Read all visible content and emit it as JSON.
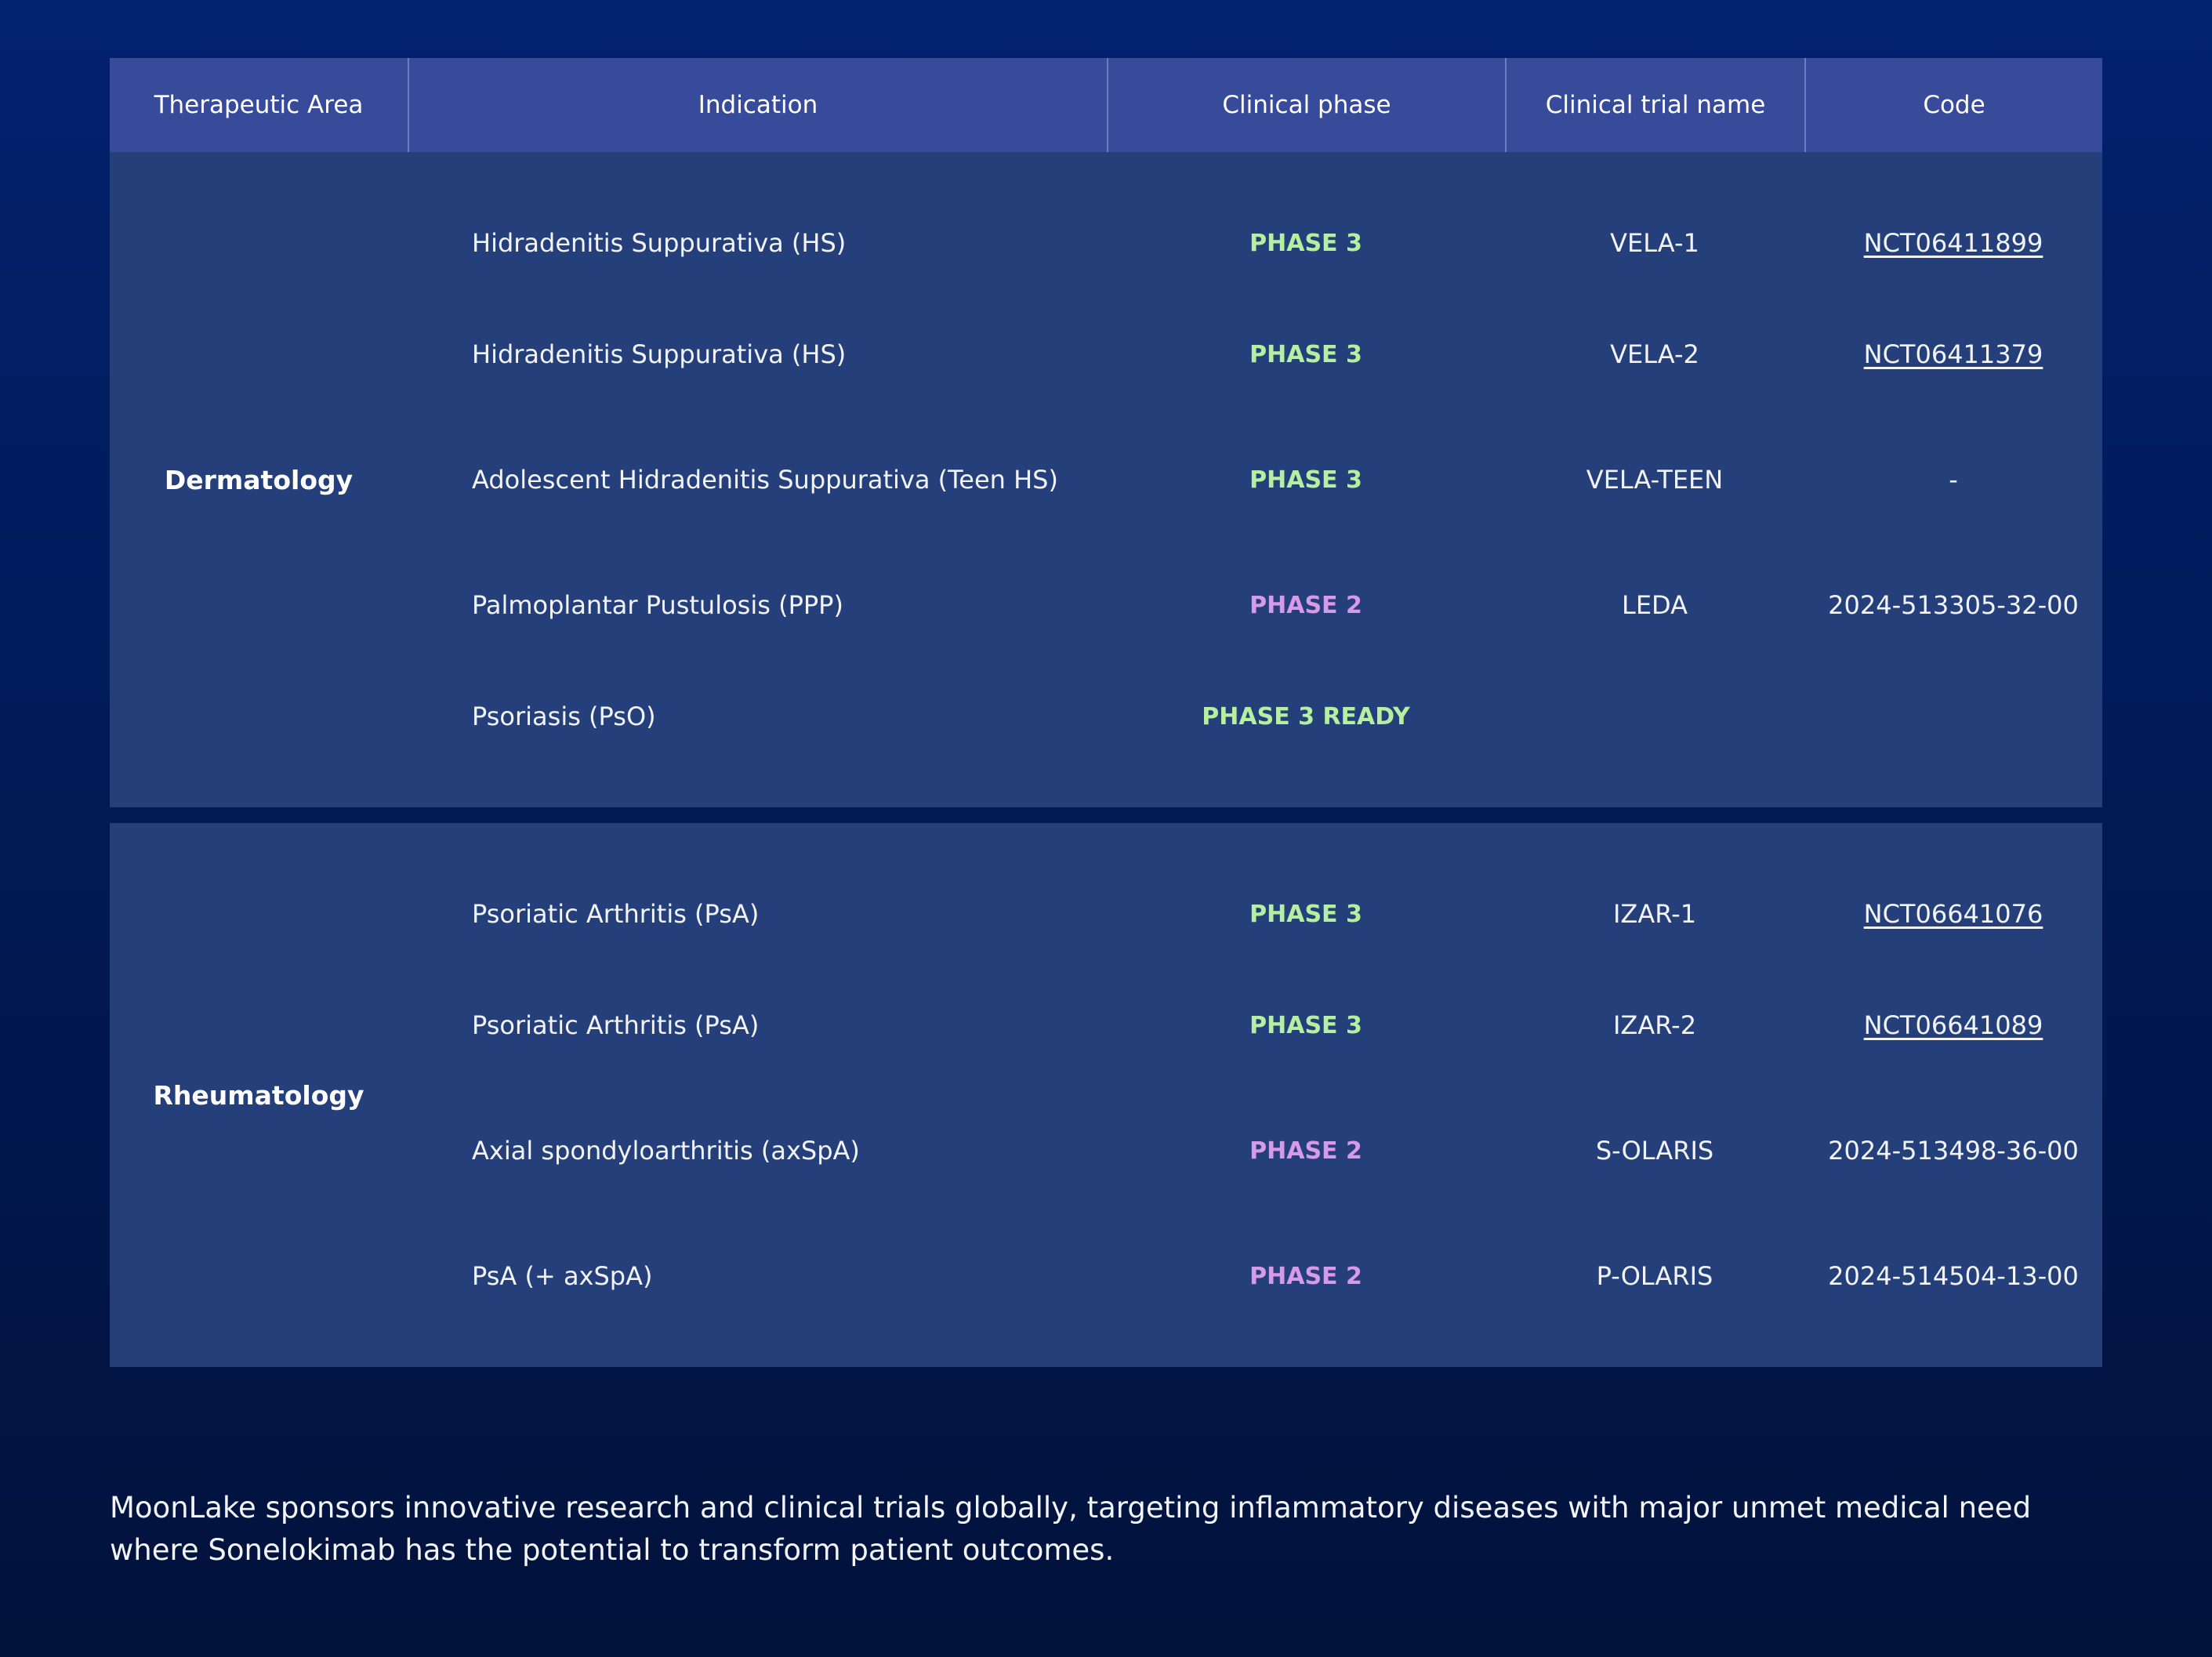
{
  "colors": {
    "phase3": "#b4f0a0",
    "phase2": "#d89ae6",
    "header_bg": "#374b9a",
    "row_bg": "#243f7a"
  },
  "table": {
    "headers": [
      "Therapeutic Area",
      "Indication",
      "Clinical phase",
      "Clinical trial name",
      "Code"
    ],
    "groups": [
      {
        "area": "Dermatology",
        "rows": [
          {
            "indication": "Hidradenitis Suppurativa (HS)",
            "phase": "PHASE 3",
            "phase_color": "phase3",
            "trial": "VELA-1",
            "code": "NCT06411899",
            "code_is_link": true
          },
          {
            "indication": "Hidradenitis Suppurativa (HS)",
            "phase": "PHASE 3",
            "phase_color": "phase3",
            "trial": "VELA-2",
            "code": "NCT06411379",
            "code_is_link": true
          },
          {
            "indication": "Adolescent Hidradenitis Suppurativa (Teen HS)",
            "phase": "PHASE 3",
            "phase_color": "phase3",
            "trial": "VELA-TEEN",
            "code": "-",
            "code_is_link": false
          },
          {
            "indication": "Palmoplantar Pustulosis (PPP)",
            "phase": "PHASE 2",
            "phase_color": "phase2",
            "trial": "LEDA",
            "code": "2024-513305-32-00",
            "code_is_link": false
          },
          {
            "indication": "Psoriasis (PsO)",
            "phase": "PHASE 3 READY",
            "phase_color": "phase3",
            "trial": "",
            "code": "",
            "code_is_link": false
          }
        ]
      },
      {
        "area": "Rheumatology",
        "rows": [
          {
            "indication": "Psoriatic Arthritis (PsA)",
            "phase": "PHASE 3",
            "phase_color": "phase3",
            "trial": "IZAR-1",
            "code": "NCT06641076",
            "code_is_link": true
          },
          {
            "indication": "Psoriatic Arthritis (PsA)",
            "phase": "PHASE 3",
            "phase_color": "phase3",
            "trial": "IZAR-2",
            "code": "NCT06641089",
            "code_is_link": true
          },
          {
            "indication": "Axial spondyloarthritis (axSpA)",
            "phase": "PHASE 2",
            "phase_color": "phase2",
            "trial": "S-OLARIS",
            "code": "2024-513498-36-00",
            "code_is_link": false
          },
          {
            "indication": "PsA (+ axSpA)",
            "phase": "PHASE 2",
            "phase_color": "phase2",
            "trial": "P-OLARIS",
            "code": "2024-514504-13-00",
            "code_is_link": false
          }
        ]
      }
    ]
  },
  "footer": {
    "text": "MoonLake sponsors innovative research and clinical trials globally, targeting inflammatory diseases with major unmet medical need where Sonelokimab has the potential to transform patient outcomes."
  }
}
